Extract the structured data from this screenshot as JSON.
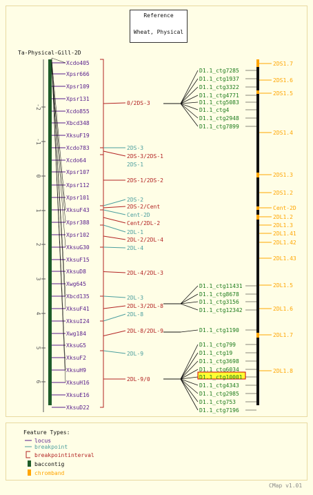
{
  "reference": {
    "line1": "Reference",
    "line2": "Wheat, Physical"
  },
  "map_title": "Ta-Physical-Gill-2D",
  "version": "CMap v1.01",
  "colors": {
    "locus": "#551a8b",
    "breakpoint": "#4a9e9e",
    "interval": "#b22222",
    "baccontig": "#1e5c28",
    "chromband": "#ffa500",
    "contig": "#1a7a1a",
    "line": "#111111",
    "highlight": "#ffff33"
  },
  "scale_ticks": [
    "-2",
    "-1",
    "0",
    "1",
    "2",
    "3",
    "4",
    "5",
    "6"
  ],
  "loci": [
    "Xcdo405",
    "Xpsr666",
    "Xpsr109",
    "Xpsr131",
    "Xcdo855",
    "Xbcd348",
    "XksuF19",
    "Xcdo783",
    "Xcdo64",
    "Xpsr107",
    "Xpsr112",
    "Xpsr101",
    "XksuF43",
    "Xpsr388",
    "Xpsr102",
    "XksuG30",
    "XksuF15",
    "XksuD8",
    "Xwg645",
    "Xbcd135",
    "XksuF41",
    "XksuI24",
    "Xwg184",
    "XksuG5",
    "XksuF2",
    "XksuH9",
    "XksuH16",
    "XksuE16",
    "XksuD22"
  ],
  "breakpoints": [
    "2DS-3",
    "2DS-2",
    "Cent-2D",
    "2DL-1",
    "2DL-4",
    "2DL-3",
    "2DL-8",
    "2DL-9"
  ],
  "intervals": [
    "0/2DS-3",
    "2DS-3/2DS-1",
    "2DS-1/2DS-2",
    "2DS-2/Cent",
    "Cent/2DL-2",
    "2DL-2/2DL-4",
    "2DL-4/2DL-3",
    "2DL-3/2DL-8",
    "2DL-8/2DL-9",
    "2DL-9/0"
  ],
  "contigs": [
    "D1.1_ctg7285",
    "D1.1_ctg1937",
    "D1.1_ctg3322",
    "D1.1_ctg4771",
    "D1.1_ctg5083",
    "D1.1_ctg4",
    "D1.1_ctg2948",
    "D1.1_ctg7899",
    "D1.1_ctg11431",
    "D1.1_ctg8678",
    "D1.1_ctg3156",
    "D1.1_ctg12342",
    "D1.1_ctg1190",
    "D1.1_ctg799",
    "D1.1_ctg19",
    "D1.1_ctg3698",
    "D1.1_ctg6034",
    "D1.1_ctg10001",
    "D1.1_ctg4343",
    "D1.1_ctg2985",
    "D1.1_ctg753",
    "D1.1_ctg7196"
  ],
  "highlighted_contig": "D1.1_ctg10001",
  "chrom_bands": [
    "2DS1.7",
    "2DS1.6",
    "2DS1.5",
    "2DS1.4",
    "2DS1.3",
    "2DS1.2",
    "Cent-2D",
    "2DL1.2",
    "2DL1.3",
    "2DL1.41",
    "2DL1.42",
    "2DL1.43",
    "2DL1.5",
    "2DL1.6",
    "2DL1.7",
    "2DL1.8"
  ],
  "legend": {
    "title": "Feature Types:",
    "items": [
      "locus",
      "breakpoint",
      "breakpointinterval",
      "baccontig",
      "chromband"
    ]
  }
}
